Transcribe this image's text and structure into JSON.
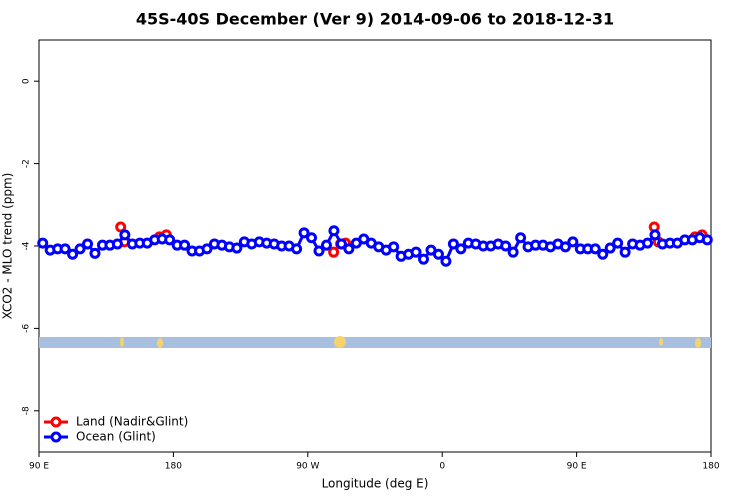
{
  "chart_data": {
    "type": "line",
    "title": "45S-40S December (Ver 9)   2014-09-06 to 2018-12-31",
    "x_label": "Longitude (deg E)",
    "y_label": "XCO2 - MLO trend (ppm)",
    "x": [
      92.5,
      97.5,
      102.5,
      107.5,
      112.5,
      117.5,
      122.5,
      127.5,
      132.5,
      137.5,
      142.5,
      147.5,
      152.5,
      157.5,
      162.5,
      167.5,
      172.5,
      177.5,
      182.5,
      187.5,
      192.5,
      197.5,
      202.5,
      207.5,
      212.5,
      217.5,
      222.5,
      227.5,
      232.5,
      237.5,
      242.5,
      247.5,
      252.5,
      257.5,
      262.5,
      267.5,
      272.5,
      277.5,
      282.5,
      287.5,
      292.5,
      297.5,
      302.5,
      307.5,
      312.5,
      317.5,
      322.5,
      327.5,
      332.5,
      337.5,
      342.5,
      347.5,
      352.5,
      357.5,
      362.5,
      367.5,
      372.5,
      377.5,
      382.5,
      387.5,
      392.5,
      397.5,
      402.5,
      407.5,
      412.5,
      417.5,
      422.5,
      427.5,
      432.5,
      437.5,
      442.5,
      447.5,
      452.5,
      457.5,
      462.5,
      467.5,
      472.5,
      477.5,
      482.5,
      487.5,
      492.5,
      497.5,
      502.5,
      507.5,
      512.5,
      517.5,
      522.5,
      527.5,
      532.5,
      537.5
    ],
    "series": [
      {
        "name": "Land (Nadir&Glint)",
        "color": "#ff0000",
        "x": [
          144.7,
          147.3,
          null,
          170.7,
          175.3,
          null,
          287.3,
          292,
          295.3,
          null,
          502,
          504.7,
          null,
          529.3,
          534
        ],
        "values": [
          -3.54,
          -3.9,
          null,
          -3.78,
          -3.73,
          null,
          -4.15,
          -3.95,
          -3.93,
          null,
          -3.54,
          -3.9,
          null,
          -3.78,
          -3.73
        ]
      },
      {
        "name": "Ocean (Glint)",
        "color": "#0000ff",
        "values": [
          -3.93,
          -4.1,
          -4.07,
          -4.07,
          -4.2,
          -4.07,
          -3.95,
          -4.18,
          -3.98,
          -3.98,
          -3.95,
          -3.73,
          -3.95,
          -3.93,
          -3.93,
          -3.85,
          -3.83,
          -3.85,
          -3.98,
          -3.98,
          -4.12,
          -4.12,
          -4.07,
          -3.95,
          -3.98,
          -4.02,
          -4.05,
          -3.9,
          -3.95,
          -3.9,
          -3.93,
          -3.95,
          -4.0,
          -4.0,
          -4.07,
          -3.68,
          -3.8,
          -4.12,
          -3.98,
          -3.63,
          -3.95,
          -4.07,
          -3.93,
          -3.83,
          -3.93,
          -4.02,
          -4.1,
          -4.02,
          -4.25,
          -4.2,
          -4.15,
          -4.32,
          -4.1,
          -4.2,
          -4.37,
          -3.95,
          -4.07,
          -3.93,
          -3.95,
          -4.0,
          -4.0,
          -3.95,
          -4.0,
          -4.15,
          -3.8,
          -4.02,
          -3.98,
          -3.98,
          -4.02,
          -3.95,
          -4.02,
          -3.9,
          -4.07,
          -4.07,
          -4.07,
          -4.2,
          -4.05,
          -3.93,
          -4.15,
          -3.95,
          -3.98,
          -3.93,
          -3.73,
          -3.95,
          -3.93,
          -3.93,
          -3.85,
          -3.85,
          -3.8,
          -3.85
        ]
      }
    ],
    "xlim": [
      90,
      540
    ],
    "xticks": [
      {
        "value": 90,
        "label": "90 E"
      },
      180,
      {
        "value": 270,
        "label": "90 W"
      },
      {
        "value": 360,
        "label": "0"
      },
      {
        "value": 450,
        "label": "90 E"
      },
      {
        "value": 540,
        "label": "180"
      }
    ],
    "ylim": [
      -9,
      1
    ],
    "yticks": [
      0,
      -2,
      -4,
      -6,
      -8
    ],
    "legend": "bottom-left"
  }
}
